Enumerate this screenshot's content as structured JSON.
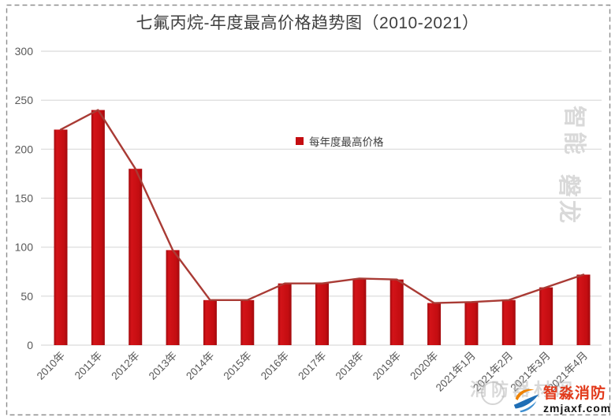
{
  "title": "七氟丙烷-年度最高价格趋势图（2010-2021）",
  "chart_data": {
    "type": "bar",
    "title": "七氟丙烷-年度最高价格趋势图（2010-2021）",
    "categories": [
      "2010年",
      "2011年",
      "2012年",
      "2013年",
      "2014年",
      "2015年",
      "2016年",
      "2017年",
      "2018年",
      "2019年",
      "2020年",
      "2021年1月",
      "2021年2月",
      "2021年3月",
      "2021年4月"
    ],
    "values": [
      220,
      240,
      180,
      97,
      46,
      46,
      63,
      63,
      68,
      67,
      43,
      44,
      46,
      59,
      72
    ],
    "legend": "每年度最高价格",
    "legend_position": "center-inside",
    "overlay_line_series": true,
    "xlabel": "",
    "ylabel": "",
    "ylim": [
      0,
      300
    ],
    "y_ticks": [
      0,
      50,
      100,
      150,
      200,
      250,
      300
    ],
    "grid": true
  },
  "watermarks": {
    "side_top": "智能",
    "side_bottom": "磐龙",
    "bottom_outline": "消防器材网"
  },
  "logo": {
    "name": "智淼消防",
    "site": "zmjaxf.com"
  },
  "colors": {
    "bar": "#c40d11",
    "bar_dark": "#a20a0e",
    "bar_bright": "#d31318",
    "line": "#a93b35",
    "grid": "#d9d9d9",
    "axis_text": "#595959",
    "title_text": "#3f3f3f",
    "legend_text": "#404040",
    "border": "#8e8e8e"
  }
}
